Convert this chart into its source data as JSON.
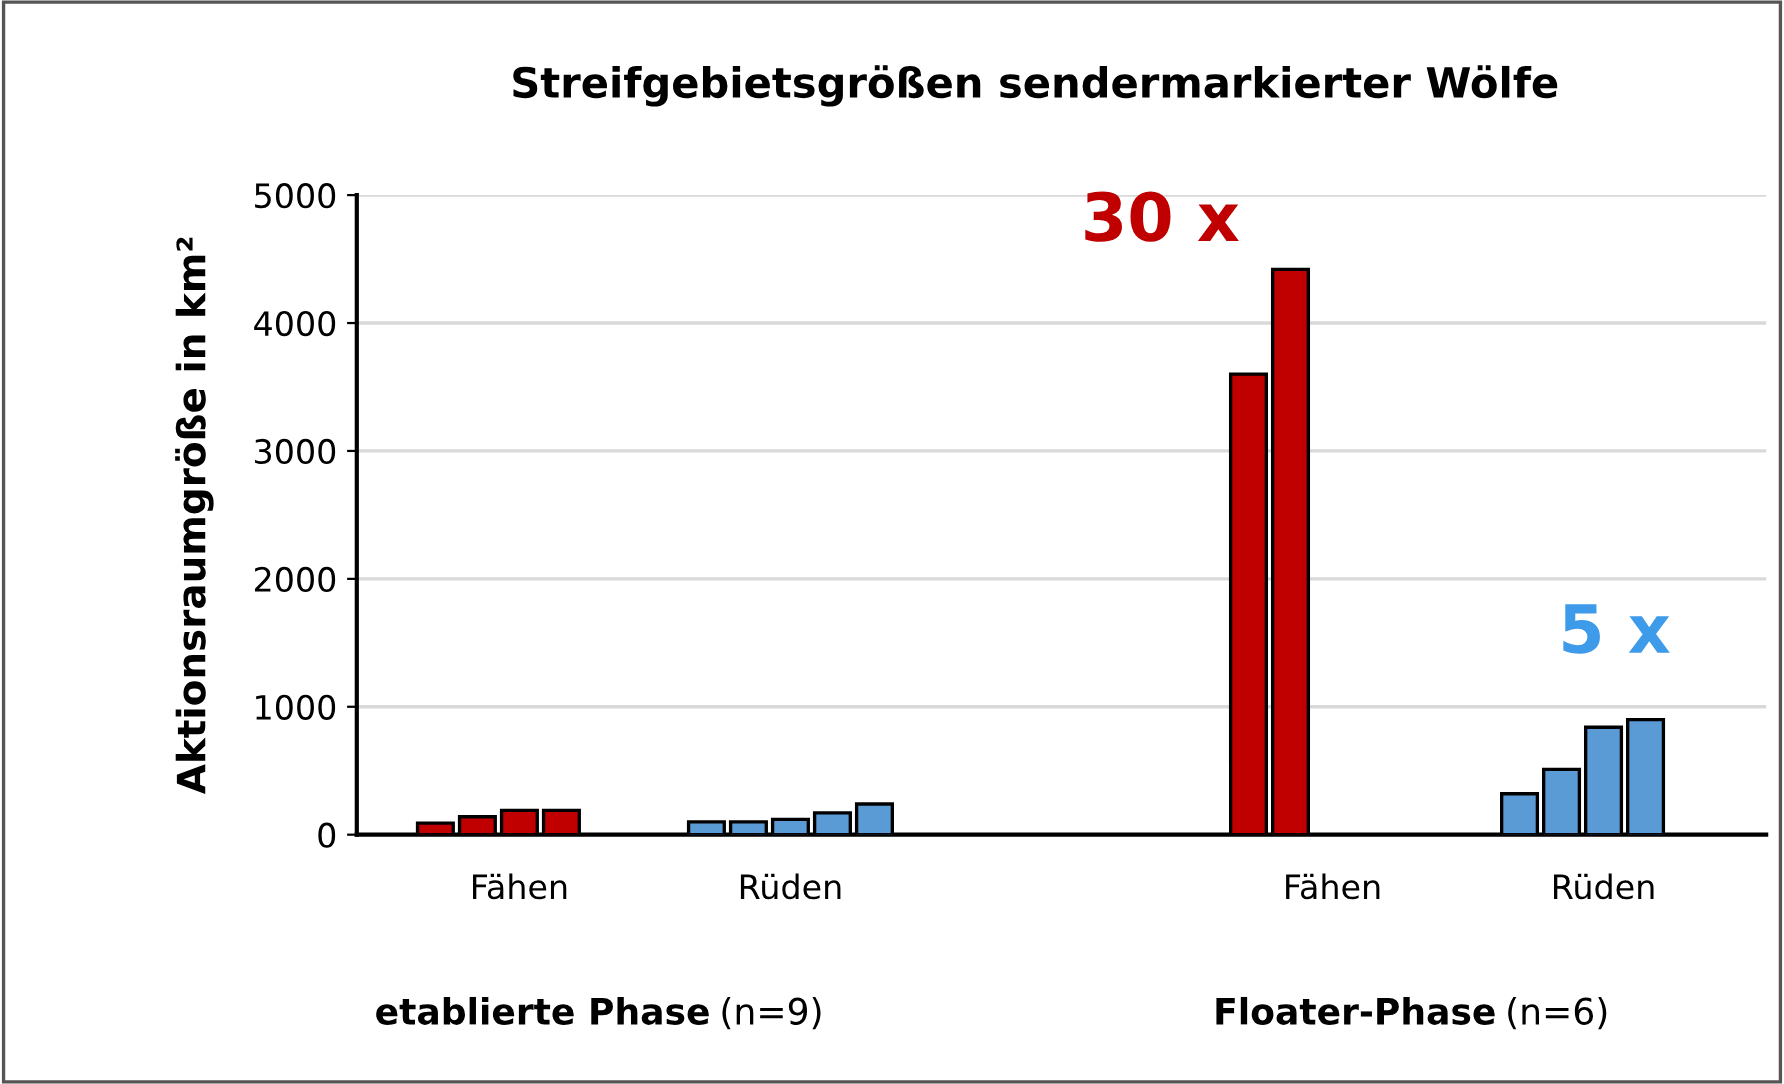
{
  "chart_data": {
    "type": "bar",
    "title": "Streifgebietsgrößen sendermarkierter Wölfe",
    "ylabel": "Aktionsraumgröße in km²",
    "categories": [
      "Fähen",
      "Rüden",
      null,
      "Fähen",
      "Rüden"
    ],
    "series": [
      {
        "colors": [
          "#c00000",
          "#5b9bd5",
          "#c00000",
          "#c00000",
          "#5b9bd5"
        ],
        "values": [
          90,
          100,
          null,
          3600,
          320
        ]
      },
      {
        "colors": [
          "#c00000",
          "#5b9bd5",
          "#c00000",
          "#c00000",
          "#5b9bd5"
        ],
        "values": [
          140,
          100,
          null,
          4420,
          510
        ]
      },
      {
        "colors": [
          "#c00000",
          "#5b9bd5",
          "#c00000",
          "#c00000",
          "#5b9bd5"
        ],
        "values": [
          190,
          120,
          null,
          null,
          840
        ]
      },
      {
        "colors": [
          "#c00000",
          "#5b9bd5",
          "#c00000",
          "#c00000",
          "#5b9bd5"
        ],
        "values": [
          190,
          170,
          null,
          null,
          900
        ]
      },
      {
        "colors": [
          "#c00000",
          "#5b9bd5",
          "#c00000",
          "#c00000",
          "#5b9bd5"
        ],
        "values": [
          null,
          240,
          null,
          null,
          null
        ]
      }
    ],
    "ylim": [
      0,
      5000
    ],
    "yticks": [
      0,
      1000,
      2000,
      3000,
      4000,
      5000
    ],
    "grid": "y",
    "legend": false,
    "annotations": [
      "30 x",
      "5 x",
      "etablierte Phase",
      "(n=9)",
      "Floater-Phase",
      "(n=6)"
    ]
  }
}
